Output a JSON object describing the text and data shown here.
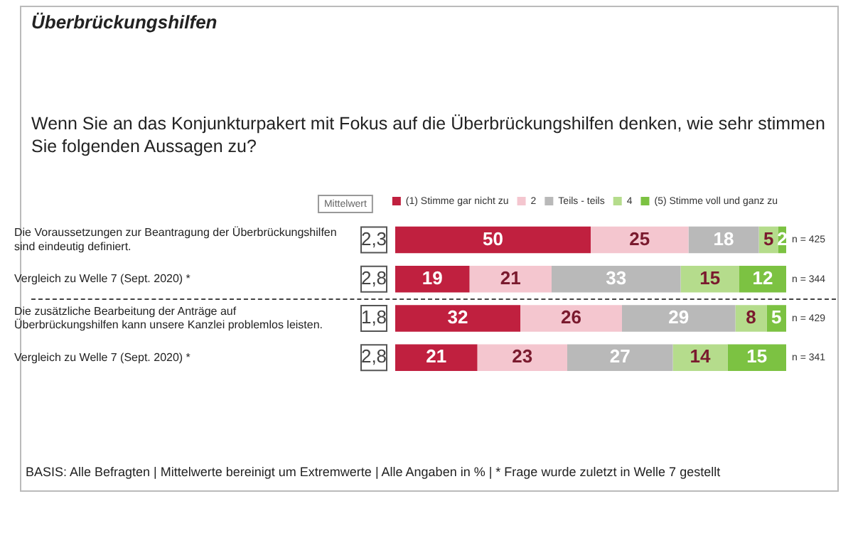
{
  "chart_data": {
    "type": "bar",
    "orientation": "horizontal",
    "stacked": true,
    "title": "Überbrückungshilfen",
    "subtitle": "Wenn Sie an das Konjunkturpakert mit Fokus auf die Überbrückungshilfen denken, wie sehr stimmen Sie folgenden Aussagen zu?",
    "categories": [
      "Die Voraussetzungen zur Beantragung der Überbrückungshilfen sind eindeutig definiert.",
      "Vergleich zu Welle 7 (Sept. 2020) *",
      "Die zusätzliche Bearbeitung der Anträge auf Überbrückungshilfen kann unsere Kanzlei problemlos leisten.",
      "Vergleich zu Welle 7 (Sept. 2020) *"
    ],
    "series": [
      {
        "name": "(1) Stimme gar nicht zu",
        "color": "#c0203f",
        "values": [
          50,
          19,
          32,
          21
        ]
      },
      {
        "name": "2",
        "color": "#f4c6cf",
        "values": [
          25,
          21,
          26,
          23
        ]
      },
      {
        "name": "Teils - teils",
        "color": "#b9b9b9",
        "values": [
          18,
          33,
          29,
          27
        ]
      },
      {
        "name": "4",
        "color": "#b5dc8c",
        "values": [
          5,
          15,
          8,
          14
        ]
      },
      {
        "name": "(5) Stimme voll und ganz zu",
        "color": "#7cc242",
        "values": [
          2,
          12,
          5,
          15
        ]
      }
    ],
    "xlim": [
      0,
      100
    ],
    "tick_labels": "y",
    "data_labels": true,
    "legend": "top right",
    "grid": false,
    "annotations": [
      "Mittelwert",
      "2,3",
      "2,8",
      "1,8",
      "2,8",
      "n = 425",
      "n = 344",
      "n = 429",
      "n = 341",
      "BASIS: Alle Befragten | Mittelwerte bereinigt um Extremwerte | Alle Angaben in % | * Frage wurde zuletzt in Welle 7 gestellt"
    ]
  }
}
